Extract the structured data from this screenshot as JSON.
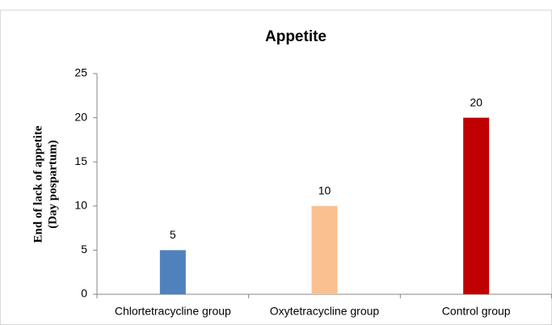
{
  "chart_data": {
    "type": "bar",
    "title": "Appetite",
    "ylabel": [
      "End of lack of appetite",
      "(Day pospartum)"
    ],
    "categories": [
      "Chlortetracycline group",
      "Oxytetracycline group",
      "Control group"
    ],
    "values": [
      5,
      10,
      20
    ],
    "colors": [
      "#4f81bd",
      "#fac090",
      "#c00000"
    ],
    "ylim": [
      0,
      25
    ],
    "yticks": [
      0,
      5,
      10,
      15,
      20,
      25
    ],
    "grid": false
  }
}
